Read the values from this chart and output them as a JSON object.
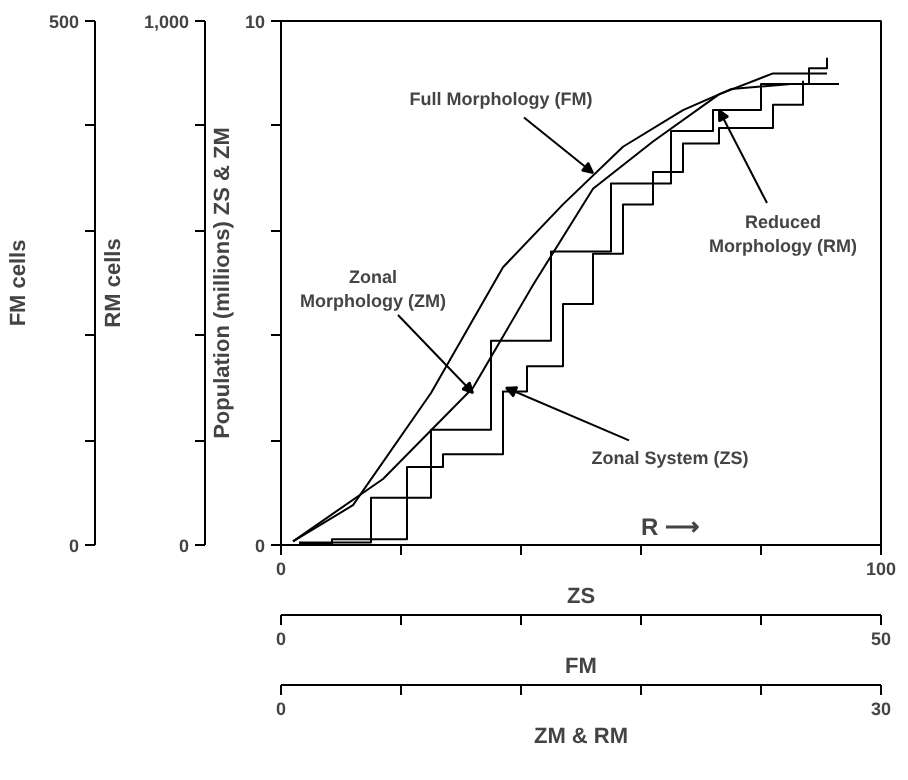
{
  "chart_data": {
    "type": "line",
    "ylabel": "Population (millions) ZS & ZM",
    "y2label": "RM cells",
    "xlabel": "ZS",
    "x2label": "FM",
    "xlim": [
      0,
      100
    ],
    "xticks": [
      0,
      {
        "value": 20,
        "label": null
      },
      {
        "value": 40,
        "label": null
      },
      {
        "value": 60,
        "label": null
      },
      {
        "value": 80,
        "label": null
      },
      100
    ],
    "x2lim": [
      0,
      50
    ],
    "x2ticks": [
      0,
      {
        "value": 10,
        "label": null
      },
      {
        "value": 20,
        "label": null
      },
      {
        "value": 30,
        "label": null
      },
      {
        "value": 40,
        "label": null
      },
      50
    ],
    "ylim": [
      0,
      10
    ],
    "yticks": [
      0,
      {
        "value": 2,
        "label": null
      },
      {
        "value": 4,
        "label": null
      },
      {
        "value": 6,
        "label": null
      },
      {
        "value": 8,
        "label": null
      },
      10
    ],
    "y2lim": [
      0,
      1000
    ],
    "y2ticks": [
      0,
      {
        "value": 200,
        "label": null
      },
      {
        "value": 400,
        "label": null
      },
      {
        "value": 600,
        "label": null
      },
      {
        "value": 800,
        "label": null
      },
      {
        "value": 1000,
        "label": "1,000"
      }
    ],
    "grid": false,
    "series": [
      {
        "color": "#000000",
        "x": [
          2,
          12,
          25,
          37,
          47,
          57,
          67,
          75,
          85,
          93
        ],
        "values": [
          0.07,
          0.76,
          2.9,
          5.3,
          6.5,
          7.6,
          8.3,
          8.7,
          8.8,
          8.8
        ]
      },
      {
        "color": "#000000",
        "x": [
          2,
          17,
          32,
          42,
          52,
          62,
          73,
          82,
          91
        ],
        "values": [
          0.07,
          1.26,
          3.0,
          4.96,
          6.8,
          7.7,
          8.6,
          9.0,
          9.0
        ]
      },
      {
        "type": "step",
        "color": "#000000",
        "x": [
          3,
          15,
          25,
          35,
          45,
          55,
          65,
          72,
          80,
          88,
          91
        ],
        "values": [
          0.05,
          0.9,
          2.2,
          3.9,
          5.6,
          6.9,
          7.9,
          8.3,
          8.8,
          9.1,
          9.3
        ]
      },
      {
        "type": "step",
        "color": "#000000",
        "x": [
          3,
          8.5,
          21,
          27,
          37,
          41,
          47,
          52,
          57,
          62,
          67,
          73,
          82,
          87
        ],
        "values": [
          0.02,
          0.11,
          1.49,
          1.73,
          2.93,
          3.41,
          4.6,
          5.56,
          6.5,
          7.12,
          7.66,
          7.96,
          8.4,
          8.86
        ]
      }
    ],
    "annotations": [
      {
        "text": "Full Morphology (FM)",
        "x": 52,
        "y": 7.1
      },
      {
        "text": "Reduced\nMorphology (RM)",
        "x": 73,
        "y": 8.3
      },
      {
        "text": "Zonal\nMorphology (ZM)",
        "x": 32,
        "y": 2.9
      },
      {
        "text": "Zonal System (ZS)",
        "x": 37.5,
        "y": 3.0
      },
      "R ⟶",
      "ZM & RM",
      "0",
      "30",
      "FM cells",
      "0",
      "500"
    ]
  }
}
